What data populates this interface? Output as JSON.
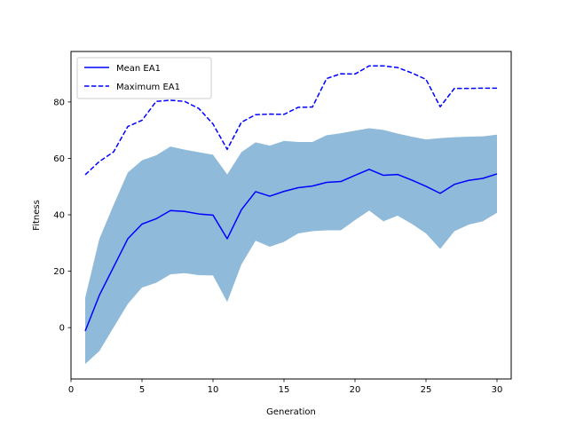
{
  "chart_data": {
    "type": "line",
    "title": "",
    "xlabel": "Generation",
    "ylabel": "Fitness",
    "xlim": [
      0.0,
      31.0
    ],
    "ylim": [
      -18.2,
      97.9
    ],
    "xticks": [
      0,
      5,
      10,
      15,
      20,
      25,
      30
    ],
    "yticks": [
      0,
      20,
      40,
      60,
      80
    ],
    "grid": false,
    "legend": {
      "position": "top-left"
    },
    "x": [
      1,
      2,
      3,
      4,
      5,
      6,
      7,
      8,
      9,
      10,
      11,
      12,
      13,
      14,
      15,
      16,
      17,
      18,
      19,
      20,
      21,
      22,
      23,
      24,
      25,
      26,
      27,
      28,
      29,
      30
    ],
    "series": [
      {
        "name": "Mean EA1",
        "style": "solid",
        "color": "#0000ff",
        "values": [
          -1.2,
          11.5,
          21.5,
          31.5,
          36.7,
          38.6,
          41.5,
          41.2,
          40.3,
          39.9,
          31.5,
          41.8,
          48.2,
          46.6,
          48.3,
          49.6,
          50.2,
          51.5,
          51.8,
          54.0,
          56.1,
          54.0,
          54.3,
          52.3,
          50.1,
          47.6,
          50.8,
          52.2,
          52.9,
          54.5
        ]
      },
      {
        "name": "Maximum EA1",
        "style": "dashed",
        "color": "#0000ff",
        "values": [
          54.2,
          58.9,
          62.3,
          71.3,
          73.5,
          80.2,
          80.6,
          80.2,
          77.7,
          72.2,
          63.2,
          72.8,
          75.5,
          75.7,
          75.6,
          78.1,
          78.2,
          88.3,
          90.0,
          89.9,
          92.8,
          92.8,
          92.2,
          90.3,
          88.0,
          78.3,
          84.8,
          84.8,
          84.9,
          84.9
        ]
      }
    ],
    "band": {
      "color": "#8fbad9",
      "lower": [
        -12.9,
        -8.3,
        0.1,
        8.4,
        14.2,
        15.9,
        18.9,
        19.3,
        18.6,
        18.5,
        9.1,
        22.4,
        30.8,
        28.7,
        30.4,
        33.4,
        34.2,
        34.5,
        34.5,
        38.1,
        41.5,
        37.7,
        39.7,
        36.8,
        33.4,
        27.9,
        34.2,
        36.5,
        37.7,
        40.7
      ],
      "upper": [
        10.6,
        31.5,
        43.5,
        55.0,
        59.3,
        61.1,
        64.2,
        63.1,
        62.2,
        61.3,
        54.3,
        62.2,
        65.7,
        64.5,
        66.2,
        65.8,
        65.8,
        68.2,
        68.9,
        69.8,
        70.7,
        70.1,
        68.8,
        67.7,
        66.7,
        67.2,
        67.5,
        67.7,
        67.8,
        68.4
      ]
    }
  }
}
